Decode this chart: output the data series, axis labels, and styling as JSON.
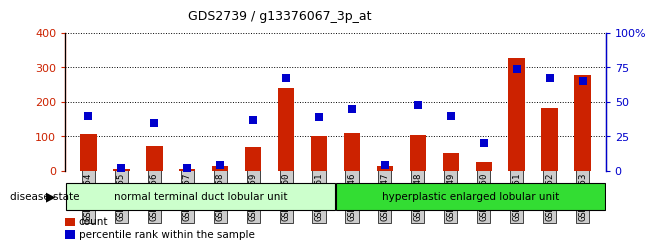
{
  "title": "GDS2739 / g13376067_3p_at",
  "samples": [
    "GSM177454",
    "GSM177455",
    "GSM177456",
    "GSM177457",
    "GSM177458",
    "GSM177459",
    "GSM177460",
    "GSM177461",
    "GSM177446",
    "GSM177447",
    "GSM177448",
    "GSM177449",
    "GSM177450",
    "GSM177451",
    "GSM177452",
    "GSM177453"
  ],
  "counts": [
    108,
    5,
    72,
    5,
    15,
    68,
    240,
    100,
    110,
    15,
    104,
    53,
    27,
    328,
    183,
    278
  ],
  "percentiles": [
    40,
    2,
    35,
    2,
    4,
    37,
    67,
    39,
    45,
    4,
    48,
    40,
    20,
    74,
    67,
    65
  ],
  "group1_label": "normal terminal duct lobular unit",
  "group2_label": "hyperplastic enlarged lobular unit",
  "group1_count": 8,
  "group2_count": 8,
  "disease_state_label": "disease state",
  "legend_count_label": "count",
  "legend_percentile_label": "percentile rank within the sample",
  "bar_color": "#cc2200",
  "dot_color": "#0000cc",
  "group1_bg": "#ccffcc",
  "group2_bg": "#33dd33",
  "tick_bg": "#cccccc",
  "ylim_left": [
    0,
    400
  ],
  "ylim_right": [
    0,
    100
  ],
  "yticks_left": [
    0,
    100,
    200,
    300,
    400
  ],
  "yticks_right": [
    0,
    25,
    50,
    75,
    100
  ],
  "bar_width": 0.5
}
